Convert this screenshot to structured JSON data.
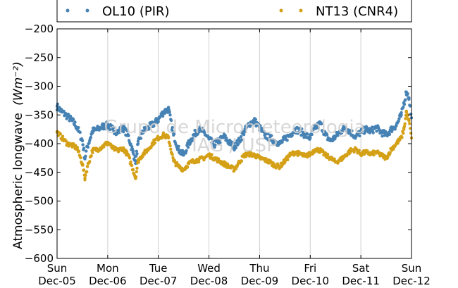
{
  "chart_data": {
    "type": "scatter",
    "title": "",
    "ylabel": "Atmospheric longwave",
    "ylabel_unit": "(Wm⁻²)",
    "xlabel": "",
    "ylim": [
      -600,
      -200
    ],
    "xlim_days": [
      0,
      7
    ],
    "yticks": [
      -200,
      -250,
      -300,
      -350,
      -400,
      -450,
      -500,
      -550,
      -600
    ],
    "xticks": [
      {
        "day": "Sun",
        "date": "Dec-05"
      },
      {
        "day": "Mon",
        "date": "Dec-06"
      },
      {
        "day": "Tue",
        "date": "Dec-07"
      },
      {
        "day": "Wed",
        "date": "Dec-08"
      },
      {
        "day": "Thu",
        "date": "Dec-09"
      },
      {
        "day": "Fri",
        "date": "Dec-10"
      },
      {
        "day": "Sat",
        "date": "Dec-11"
      },
      {
        "day": "Sun",
        "date": "Dec-12"
      }
    ],
    "grid": "vertical",
    "legend_position": "top",
    "series": [
      {
        "name": "OL10 (PIR)",
        "color": "#4682b4",
        "points": [
          [
            0.0,
            -335
          ],
          [
            0.1,
            -345
          ],
          [
            0.2,
            -352
          ],
          [
            0.3,
            -360
          ],
          [
            0.4,
            -372
          ],
          [
            0.5,
            -395
          ],
          [
            0.55,
            -425
          ],
          [
            0.6,
            -405
          ],
          [
            0.7,
            -378
          ],
          [
            0.8,
            -375
          ],
          [
            0.9,
            -370
          ],
          [
            1.0,
            -368
          ],
          [
            1.1,
            -375
          ],
          [
            1.2,
            -380
          ],
          [
            1.3,
            -372
          ],
          [
            1.4,
            -385
          ],
          [
            1.5,
            -415
          ],
          [
            1.55,
            -430
          ],
          [
            1.6,
            -400
          ],
          [
            1.7,
            -378
          ],
          [
            1.8,
            -372
          ],
          [
            1.9,
            -366
          ],
          [
            2.0,
            -358
          ],
          [
            2.1,
            -345
          ],
          [
            2.2,
            -340
          ],
          [
            2.3,
            -385
          ],
          [
            2.4,
            -410
          ],
          [
            2.5,
            -420
          ],
          [
            2.6,
            -400
          ],
          [
            2.7,
            -385
          ],
          [
            2.8,
            -375
          ],
          [
            2.9,
            -380
          ],
          [
            3.0,
            -392
          ],
          [
            3.1,
            -402
          ],
          [
            3.2,
            -395
          ],
          [
            3.3,
            -388
          ],
          [
            3.4,
            -398
          ],
          [
            3.5,
            -405
          ],
          [
            3.6,
            -395
          ],
          [
            3.7,
            -378
          ],
          [
            3.8,
            -365
          ],
          [
            3.9,
            -360
          ],
          [
            4.0,
            -372
          ],
          [
            4.1,
            -385
          ],
          [
            4.2,
            -390
          ],
          [
            4.3,
            -395
          ],
          [
            4.4,
            -400
          ],
          [
            4.5,
            -392
          ],
          [
            4.6,
            -385
          ],
          [
            4.7,
            -375
          ],
          [
            4.8,
            -378
          ],
          [
            4.9,
            -385
          ],
          [
            5.0,
            -390
          ],
          [
            5.1,
            -372
          ],
          [
            5.2,
            -365
          ],
          [
            5.3,
            -385
          ],
          [
            5.4,
            -395
          ],
          [
            5.5,
            -388
          ],
          [
            5.6,
            -378
          ],
          [
            5.7,
            -372
          ],
          [
            5.8,
            -380
          ],
          [
            5.9,
            -388
          ],
          [
            6.0,
            -380
          ],
          [
            6.1,
            -375
          ],
          [
            6.2,
            -378
          ],
          [
            6.3,
            -372
          ],
          [
            6.4,
            -380
          ],
          [
            6.5,
            -385
          ],
          [
            6.6,
            -375
          ],
          [
            6.7,
            -368
          ],
          [
            6.8,
            -350
          ],
          [
            6.85,
            -330
          ],
          [
            6.9,
            -310
          ],
          [
            6.95,
            -320
          ],
          [
            7.0,
            -355
          ]
        ]
      },
      {
        "name": "NT13 (CNR4)",
        "color": "#d4a017",
        "points": [
          [
            0.0,
            -380
          ],
          [
            0.1,
            -390
          ],
          [
            0.2,
            -400
          ],
          [
            0.3,
            -403
          ],
          [
            0.4,
            -408
          ],
          [
            0.5,
            -435
          ],
          [
            0.55,
            -460
          ],
          [
            0.6,
            -440
          ],
          [
            0.7,
            -412
          ],
          [
            0.8,
            -410
          ],
          [
            0.9,
            -405
          ],
          [
            1.0,
            -398
          ],
          [
            1.1,
            -408
          ],
          [
            1.2,
            -412
          ],
          [
            1.3,
            -408
          ],
          [
            1.4,
            -420
          ],
          [
            1.5,
            -445
          ],
          [
            1.55,
            -460
          ],
          [
            1.6,
            -430
          ],
          [
            1.7,
            -418
          ],
          [
            1.8,
            -410
          ],
          [
            1.9,
            -398
          ],
          [
            2.0,
            -390
          ],
          [
            2.1,
            -385
          ],
          [
            2.2,
            -390
          ],
          [
            2.3,
            -430
          ],
          [
            2.4,
            -440
          ],
          [
            2.5,
            -445
          ],
          [
            2.6,
            -435
          ],
          [
            2.7,
            -430
          ],
          [
            2.8,
            -428
          ],
          [
            2.9,
            -425
          ],
          [
            3.0,
            -420
          ],
          [
            3.1,
            -425
          ],
          [
            3.2,
            -430
          ],
          [
            3.3,
            -435
          ],
          [
            3.4,
            -440
          ],
          [
            3.5,
            -445
          ],
          [
            3.6,
            -432
          ],
          [
            3.7,
            -420
          ],
          [
            3.8,
            -418
          ],
          [
            3.9,
            -420
          ],
          [
            4.0,
            -425
          ],
          [
            4.1,
            -428
          ],
          [
            4.2,
            -432
          ],
          [
            4.3,
            -438
          ],
          [
            4.4,
            -440
          ],
          [
            4.5,
            -430
          ],
          [
            4.6,
            -420
          ],
          [
            4.7,
            -415
          ],
          [
            4.8,
            -418
          ],
          [
            4.9,
            -422
          ],
          [
            5.0,
            -418
          ],
          [
            5.1,
            -410
          ],
          [
            5.2,
            -412
          ],
          [
            5.3,
            -420
          ],
          [
            5.4,
            -425
          ],
          [
            5.5,
            -432
          ],
          [
            5.6,
            -428
          ],
          [
            5.7,
            -420
          ],
          [
            5.8,
            -412
          ],
          [
            5.9,
            -410
          ],
          [
            6.0,
            -418
          ],
          [
            6.1,
            -415
          ],
          [
            6.2,
            -418
          ],
          [
            6.3,
            -415
          ],
          [
            6.4,
            -420
          ],
          [
            6.5,
            -425
          ],
          [
            6.6,
            -410
          ],
          [
            6.7,
            -400
          ],
          [
            6.8,
            -390
          ],
          [
            6.85,
            -375
          ],
          [
            6.9,
            -345
          ],
          [
            6.95,
            -360
          ],
          [
            7.0,
            -390
          ]
        ]
      }
    ]
  },
  "watermark": {
    "line1": "Grupo de Micrometeorologia",
    "line2": "IAG / USP"
  }
}
